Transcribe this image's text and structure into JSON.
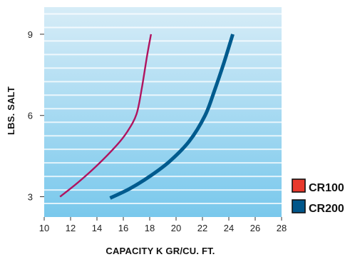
{
  "chart_data": {
    "type": "line",
    "title": "",
    "xlabel": "CAPACITY K GR/CU. FT.",
    "ylabel": "LBS. SALT",
    "xlim": [
      10,
      28
    ],
    "ylim": [
      2.25,
      10
    ],
    "x_ticks": [
      10,
      12,
      14,
      16,
      18,
      20,
      22,
      24,
      26,
      28
    ],
    "y_ticks": [
      3,
      6,
      9
    ],
    "grid": "horizontal bands",
    "legend_position": "bottom-right",
    "series": [
      {
        "name": "CR100",
        "color": "#b0135f",
        "points": [
          [
            11.2,
            3.0
          ],
          [
            12.5,
            3.5
          ],
          [
            14.0,
            4.15
          ],
          [
            15.5,
            4.9
          ],
          [
            16.3,
            5.4
          ],
          [
            17.0,
            6.05
          ],
          [
            17.4,
            7.0
          ],
          [
            17.8,
            8.2
          ],
          [
            18.1,
            9.0
          ]
        ]
      },
      {
        "name": "CR200",
        "color": "#005b8e",
        "points": [
          [
            15.0,
            2.95
          ],
          [
            16.5,
            3.3
          ],
          [
            18.0,
            3.75
          ],
          [
            19.5,
            4.3
          ],
          [
            21.0,
            5.05
          ],
          [
            22.2,
            6.0
          ],
          [
            22.9,
            6.9
          ],
          [
            23.6,
            7.9
          ],
          [
            24.3,
            9.0
          ]
        ]
      }
    ],
    "legend": [
      {
        "label": "CR100",
        "swatch_color": "#e8392c"
      },
      {
        "label": "CR200",
        "swatch_color": "#00568a"
      }
    ]
  }
}
